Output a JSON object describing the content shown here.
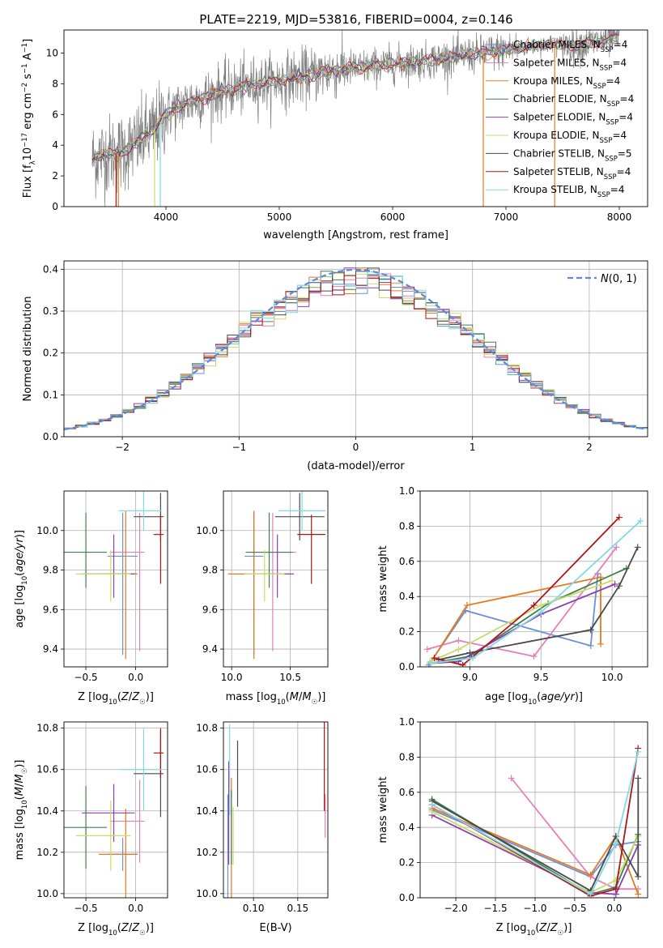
{
  "figure_title": "PLATE=2219, MJD=53816, FIBERID=0004, z=0.146",
  "colors": {
    "Chabrier MILES": "#6a8fdb",
    "Salpeter MILES": "#e67fb6",
    "Kroupa MILES": "#e8781e",
    "Chabrier ELODIE": "#3f7f4f",
    "Salpeter ELODIE": "#8e3fae",
    "Kroupa ELODIE": "#c8dc6a",
    "Chabrier STELIB": "#4a4a4a",
    "Salpeter STELIB": "#b01515",
    "Kroupa STELIB": "#82d8e6",
    "data": "#808080",
    "gauss": "#5b8bd8"
  },
  "chart_data": [
    {
      "id": "spectrum",
      "type": "line",
      "xlabel": "wavelength [Angstrom, rest frame]",
      "ylabel": "Flux [f_λ10^-17 erg cm^-2 s^-1 A^-1]",
      "xlim": [
        3100,
        8250
      ],
      "ylim": [
        0,
        11.5
      ],
      "xticks": [
        4000,
        5000,
        6000,
        7000,
        8000
      ],
      "yticks": [
        0,
        2,
        4,
        6,
        8,
        10
      ],
      "legend_position": "upper-right",
      "legend": [
        {
          "label": "Chabrier MILES, N",
          "sub": "SSP",
          "tail": "=4"
        },
        {
          "label": "Salpeter MILES, N",
          "sub": "SSP",
          "tail": "=4"
        },
        {
          "label": "Kroupa MILES, N",
          "sub": "SSP",
          "tail": "=4"
        },
        {
          "label": "Chabrier ELODIE, N",
          "sub": "SSP",
          "tail": "=4"
        },
        {
          "label": "Salpeter ELODIE, N",
          "sub": "SSP",
          "tail": "=4"
        },
        {
          "label": "Kroupa ELODIE, N",
          "sub": "SSP",
          "tail": "=4"
        },
        {
          "label": "Chabrier STELIB, N",
          "sub": "SSP",
          "tail": "=5"
        },
        {
          "label": "Salpeter STELIB, N",
          "sub": "SSP",
          "tail": "=4"
        },
        {
          "label": "Kroupa STELIB, N",
          "sub": "SSP",
          "tail": "=4"
        }
      ],
      "continuum": [
        [
          3350,
          3.1
        ],
        [
          3450,
          3.4
        ],
        [
          3600,
          3.5
        ],
        [
          3700,
          3.9
        ],
        [
          3800,
          4.5
        ],
        [
          3900,
          5.0
        ],
        [
          4000,
          6.0
        ],
        [
          4200,
          6.8
        ],
        [
          4500,
          7.5
        ],
        [
          4800,
          8.0
        ],
        [
          5000,
          8.2
        ],
        [
          5300,
          8.6
        ],
        [
          5500,
          8.9
        ],
        [
          5800,
          9.1
        ],
        [
          6000,
          9.3
        ],
        [
          6300,
          9.5
        ],
        [
          6600,
          9.8
        ],
        [
          6800,
          10.0
        ],
        [
          7000,
          10.2
        ],
        [
          7200,
          10.4
        ],
        [
          7400,
          10.6
        ],
        [
          7600,
          10.5
        ],
        [
          7800,
          10.7
        ],
        [
          8000,
          11.0
        ]
      ]
    },
    {
      "id": "residuals",
      "type": "bar",
      "xlabel": "(data-model)/error",
      "ylabel": "Normed distribution",
      "xlim": [
        -2.5,
        2.5
      ],
      "ylim": [
        0,
        0.42
      ],
      "xticks": [
        -2,
        -1,
        0,
        1,
        2
      ],
      "yticks": [
        0.0,
        0.1,
        0.2,
        0.3,
        0.4
      ],
      "legend_position": "upper-right",
      "legend_label": "N(0,1)",
      "grid": true
    },
    {
      "id": "age-Z",
      "type": "scatter",
      "xlabel": "Z [log10(Z/Z☉)]",
      "ylabel": "age [log10(age/yr)]",
      "xlim": [
        -0.72,
        0.32
      ],
      "ylim": [
        9.31,
        10.2
      ],
      "xticks": [
        -0.5,
        0.0
      ],
      "yticks": [
        9.4,
        9.6,
        9.8,
        10.0
      ],
      "grid": true
    },
    {
      "id": "age-mass",
      "type": "scatter",
      "xlabel": "mass [log10(M/M☉)]",
      "ylabel": "",
      "xlim": [
        9.93,
        10.82
      ],
      "ylim": [
        9.31,
        10.2
      ],
      "xticks": [
        10.0,
        10.5
      ],
      "yticks": [
        9.4,
        9.6,
        9.8,
        10.0
      ],
      "grid": true
    },
    {
      "id": "weight-age",
      "type": "line",
      "xlabel": "age [log10(age/yr)]",
      "ylabel": "mass weight",
      "xlim": [
        8.65,
        10.25
      ],
      "ylim": [
        0,
        1.0
      ],
      "xticks": [
        9.0,
        9.5,
        10.0
      ],
      "yticks": [
        0.0,
        0.2,
        0.4,
        0.6,
        0.8,
        1.0
      ],
      "grid": true
    },
    {
      "id": "mass-Z",
      "type": "scatter",
      "xlabel": "Z [log10(Z/Z☉)]",
      "ylabel": "mass [log10(M/M☉)]",
      "xlim": [
        -0.72,
        0.32
      ],
      "ylim": [
        9.98,
        10.83
      ],
      "xticks": [
        -0.5,
        0.0
      ],
      "yticks": [
        10.0,
        10.2,
        10.4,
        10.6,
        10.8
      ],
      "grid": true
    },
    {
      "id": "mass-EBV",
      "type": "scatter",
      "xlabel": "E(B-V)",
      "ylabel": "",
      "xlim": [
        0.066,
        0.184
      ],
      "ylim": [
        9.98,
        10.83
      ],
      "xticks": [
        0.1,
        0.15
      ],
      "yticks": [
        10.0,
        10.2,
        10.4,
        10.6,
        10.8
      ],
      "grid": true
    },
    {
      "id": "weight-Z",
      "type": "line",
      "xlabel": "Z [log10(Z/Z☉)]",
      "ylabel": "mass weight",
      "xlim": [
        -2.45,
        0.42
      ],
      "ylim": [
        0,
        1.0
      ],
      "xticks": [
        -2.0,
        -1.5,
        -1.0,
        -0.5,
        0.0
      ],
      "yticks": [
        0.0,
        0.2,
        0.4,
        0.6,
        0.8,
        1.0
      ],
      "grid": true
    }
  ],
  "fits": [
    {
      "name": "Chabrier MILES",
      "Z": -0.13,
      "Zerr": [
        0.15,
        0.15
      ],
      "age": 9.87,
      "ageErr": [
        0.5,
        0.22
      ],
      "mass": 10.19,
      "massErr": [
        0.08,
        0.08
      ],
      "ebv": 0.071,
      "ebvErr": [
        0.29,
        0.29
      ],
      "ages": [
        [
          8.71,
          0.01
        ],
        [
          8.97,
          0.32
        ],
        [
          9.85,
          0.12
        ],
        [
          9.9,
          0.53
        ]
      ],
      "Zs": [
        [
          -2.3,
          0.5
        ],
        [
          -0.3,
          0.12
        ],
        [
          0.02,
          0.3
        ],
        [
          0.3,
          0.32
        ]
      ]
    },
    {
      "name": "Salpeter MILES",
      "Z": 0.04,
      "Zerr": [
        0.3,
        0.05
      ],
      "age": 9.89,
      "ageErr": [
        0.5,
        0.2
      ],
      "mass": 10.35,
      "massErr": [
        0.2,
        0.2
      ],
      "ebv": 0.181,
      "ebvErr": [
        0.08,
        0.13
      ],
      "ages": [
        [
          8.7,
          0.1
        ],
        [
          8.92,
          0.15
        ],
        [
          9.45,
          0.06
        ],
        [
          10.03,
          0.68
        ]
      ],
      "Zs": [
        [
          -1.3,
          0.68
        ],
        [
          -0.3,
          0.12
        ],
        [
          0.02,
          0.05
        ],
        [
          0.3,
          0.05
        ]
      ]
    },
    {
      "name": "Kroupa MILES",
      "Z": -0.1,
      "Zerr": [
        0.27,
        0.12
      ],
      "age": 9.78,
      "ageErr": [
        0.43,
        0.32
      ],
      "mass": 10.19,
      "massErr": [
        0.22,
        0.22
      ],
      "ebv": 0.075,
      "ebvErr": [
        0.37,
        0.37
      ],
      "ages": [
        [
          8.72,
          0.02
        ],
        [
          8.98,
          0.35
        ],
        [
          9.92,
          0.51
        ],
        [
          9.92,
          0.13
        ]
      ],
      "Zs": [
        [
          -2.3,
          0.51
        ],
        [
          -0.3,
          0.13
        ],
        [
          0.02,
          0.35
        ],
        [
          0.3,
          0.02
        ]
      ]
    },
    {
      "name": "Chabrier ELODIE",
      "Z": -0.5,
      "Zerr": [
        0.27,
        0.21
      ],
      "age": 9.89,
      "ageErr": [
        0.18,
        0.2
      ],
      "mass": 10.32,
      "massErr": [
        0.2,
        0.2
      ],
      "ebv": 0.075,
      "ebvErr": [
        0.18,
        0.18
      ],
      "ages": [
        [
          8.72,
          0.02
        ],
        [
          9.0,
          0.06
        ],
        [
          9.55,
          0.36
        ],
        [
          10.1,
          0.56
        ]
      ],
      "Zs": [
        [
          -2.3,
          0.56
        ],
        [
          -0.3,
          0.02
        ],
        [
          0.02,
          0.06
        ],
        [
          0.3,
          0.36
        ]
      ]
    },
    {
      "name": "Salpeter ELODIE",
      "Z": -0.22,
      "Zerr": [
        0.32,
        0.21
      ],
      "age": 9.78,
      "ageErr": [
        0.12,
        0.2
      ],
      "mass": 10.39,
      "massErr": [
        0.14,
        0.14
      ],
      "ebv": 0.072,
      "ebvErr": [
        0.25,
        0.25
      ],
      "ages": [
        [
          8.72,
          0.02
        ],
        [
          8.92,
          0.03
        ],
        [
          9.5,
          0.3
        ],
        [
          10.02,
          0.47
        ]
      ],
      "Zs": [
        [
          -2.3,
          0.47
        ],
        [
          -0.3,
          0.03
        ],
        [
          0.02,
          0.02
        ],
        [
          0.3,
          0.3
        ]
      ]
    },
    {
      "name": "Kroupa ELODIE",
      "Z": -0.25,
      "Zerr": [
        0.35,
        0.2
      ],
      "age": 9.78,
      "ageErr": [
        0.14,
        0.12
      ],
      "mass": 10.28,
      "massErr": [
        0.17,
        0.17
      ],
      "ebv": 0.077,
      "ebvErr": [
        0.14,
        0.14
      ],
      "ages": [
        [
          8.72,
          0.03
        ],
        [
          8.92,
          0.1
        ],
        [
          9.5,
          0.35
        ],
        [
          10.0,
          0.49
        ]
      ],
      "Zs": [
        [
          -2.3,
          0.49
        ],
        [
          -0.3,
          0.03
        ],
        [
          0.02,
          0.1
        ],
        [
          0.3,
          0.35
        ]
      ]
    },
    {
      "name": "Chabrier STELIB",
      "Z": 0.25,
      "Zerr": [
        0.27,
        0.03
      ],
      "age": 10.07,
      "ageErr": [
        0.12,
        0.12
      ],
      "mass": 10.58,
      "massErr": [
        0.21,
        0.21
      ],
      "ebv": 0.082,
      "ebvErr": [
        0.16,
        0.16
      ],
      "ages": [
        [
          8.78,
          0.04
        ],
        [
          9.0,
          0.08
        ],
        [
          9.85,
          0.21
        ],
        [
          10.05,
          0.46
        ],
        [
          10.18,
          0.68
        ]
      ],
      "Zs": [
        [
          -2.3,
          0.55
        ],
        [
          -0.3,
          0.04
        ],
        [
          0.02,
          0.35
        ],
        [
          0.3,
          0.12
        ],
        [
          0.3,
          0.68
        ]
      ]
    },
    {
      "name": "Salpeter STELIB",
      "Z": 0.25,
      "Zerr": [
        0.07,
        0.03
      ],
      "age": 9.98,
      "ageErr": [
        0.25,
        0.1
      ],
      "mass": 10.68,
      "massErr": [
        0.12,
        0.12
      ],
      "ebv": 0.18,
      "ebvErr": [
        0.28,
        0.28
      ],
      "ages": [
        [
          8.75,
          0.05
        ],
        [
          8.95,
          0.01
        ],
        [
          9.45,
          0.35
        ],
        [
          10.05,
          0.85
        ]
      ],
      "Zs": [
        [
          -2.3,
          0.53
        ],
        [
          -0.3,
          0.01
        ],
        [
          0.02,
          0.05
        ],
        [
          0.3,
          0.85
        ]
      ]
    },
    {
      "name": "Kroupa STELIB",
      "Z": 0.08,
      "Zerr": [
        0.25,
        0.18
      ],
      "age": 10.1,
      "ageErr": [
        0.1,
        0.1
      ],
      "mass": 10.6,
      "massErr": [
        0.2,
        0.2
      ],
      "ebv": 0.073,
      "ebvErr": [
        0.22,
        0.22
      ],
      "ages": [
        [
          8.72,
          0.02
        ],
        [
          9.02,
          0.05
        ],
        [
          9.5,
          0.31
        ],
        [
          10.2,
          0.83
        ]
      ],
      "Zs": [
        [
          -2.3,
          0.53
        ],
        [
          -0.3,
          0.02
        ],
        [
          0.02,
          0.31
        ],
        [
          0.3,
          0.83
        ]
      ]
    }
  ]
}
